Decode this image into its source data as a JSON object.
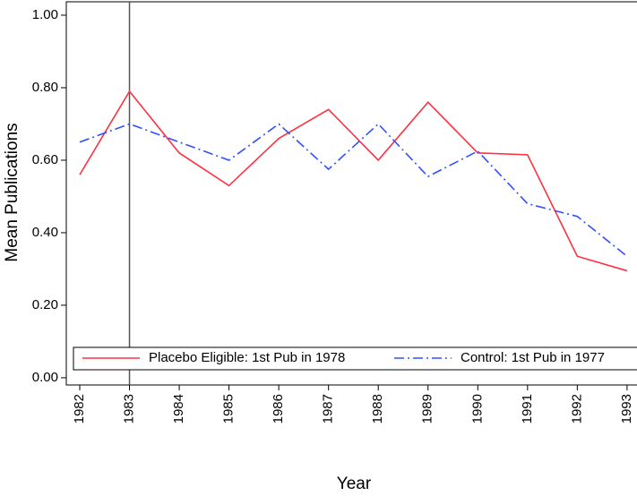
{
  "chart_data": {
    "type": "line",
    "x": [
      1982,
      1983,
      1984,
      1985,
      1986,
      1987,
      1988,
      1989,
      1990,
      1991,
      1992,
      1993
    ],
    "series": [
      {
        "name": "Placebo Eligible: 1st Pub in 1978",
        "color": "#ff3040",
        "dash": "solid",
        "values": [
          0.56,
          0.79,
          0.62,
          0.53,
          0.66,
          0.74,
          0.6,
          0.76,
          0.62,
          0.615,
          0.335,
          0.295
        ]
      },
      {
        "name": "Control: 1st Pub in 1977",
        "color": "#3050ff",
        "dash": "dashdot",
        "values": [
          0.65,
          0.7,
          0.65,
          0.6,
          0.7,
          0.575,
          0.7,
          0.555,
          0.625,
          0.48,
          0.445,
          0.335
        ]
      }
    ],
    "xlabel": "Year",
    "ylabel": "Mean Publications",
    "xlim": [
      1981.73,
      1993.2
    ],
    "ylim": [
      -0.02,
      1.037
    ],
    "xticks": [
      1982,
      1983,
      1984,
      1985,
      1986,
      1987,
      1988,
      1989,
      1990,
      1991,
      1992,
      1993
    ],
    "yticks": [
      {
        "value": 0,
        "label": "0.00"
      },
      {
        "value": 0.2,
        "label": "0.20"
      },
      {
        "value": 0.4,
        "label": "0.40"
      },
      {
        "value": 0.6,
        "label": "0.60"
      },
      {
        "value": 0.8,
        "label": "0.80"
      },
      {
        "value": 1,
        "label": "1.00"
      }
    ],
    "vline": 1983,
    "legend": "bottom"
  }
}
